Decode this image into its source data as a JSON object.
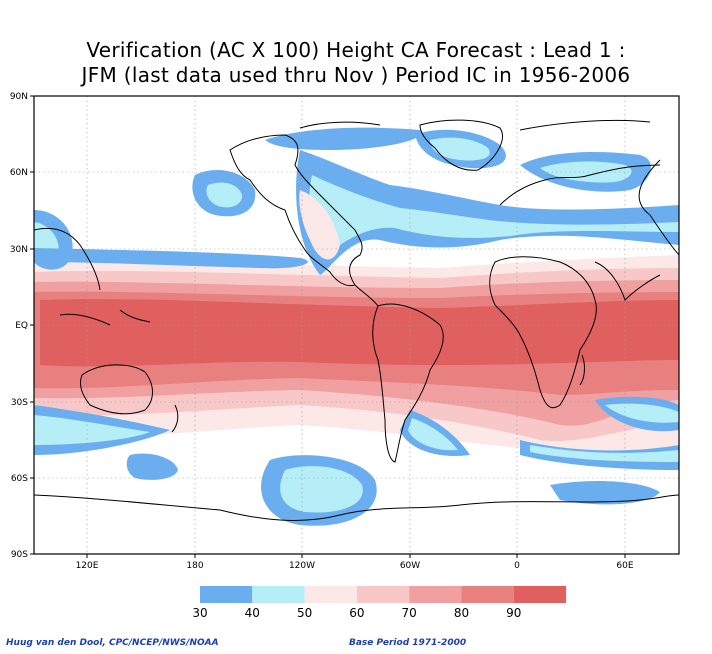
{
  "title_line1": "Verification (AC X 100) Height CA Forecast : Lead 1 :",
  "title_line2": "JFM (last data used thru Nov ) Period IC in 1956-2006",
  "lat_labels": [
    "90N",
    "60N",
    "30N",
    "EQ",
    "30S",
    "60S",
    "90S"
  ],
  "lon_labels": [
    "120E",
    "180",
    "120W",
    "60W",
    "0",
    "60E"
  ],
  "colorbar": {
    "ticks": [
      "30",
      "40",
      "50",
      "60",
      "70",
      "80",
      "90"
    ],
    "colors": [
      "#6aaef0",
      "#b6eef8",
      "#fde8e8",
      "#f8c8c8",
      "#f0a0a0",
      "#e88080",
      "#e06060"
    ]
  },
  "footer": {
    "credit": "Huug van den Dool, CPC/NCEP/NWS/NOAA",
    "base_period": "Base Period 1971-2000"
  }
}
